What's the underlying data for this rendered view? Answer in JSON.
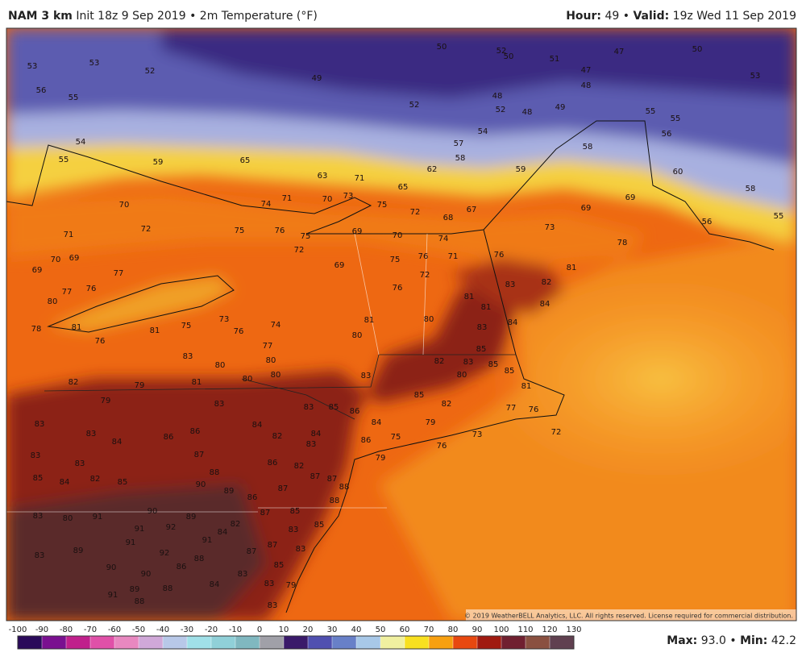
{
  "header": {
    "model": "NAM 3 km",
    "init": "Init 18z 9 Sep 2019",
    "separator": "•",
    "parameter": "2m Temperature (°F)",
    "hour_label": "Hour:",
    "hour": "49",
    "valid_label": "Valid:",
    "valid": "19z Wed 11 Sep 2019"
  },
  "map": {
    "labels": [
      53,
      53,
      52,
      49,
      50,
      52,
      50,
      51,
      47,
      50,
      47,
      48,
      53,
      56,
      55,
      52,
      48,
      52,
      48,
      49,
      55,
      55,
      56,
      54,
      57,
      58,
      54,
      55,
      59,
      65,
      63,
      71,
      65,
      62,
      59,
      58,
      60,
      58,
      69,
      69,
      55,
      56,
      73,
      78,
      70,
      72,
      74,
      71,
      70,
      73,
      75,
      72,
      68,
      67,
      75,
      76,
      75,
      69,
      70,
      74,
      71,
      69,
      70,
      69,
      77,
      72,
      69,
      75,
      76,
      71,
      76,
      81,
      82,
      83,
      84,
      73,
      74,
      76,
      80,
      77,
      76,
      78,
      81,
      76,
      81,
      75,
      77,
      80,
      81,
      76,
      72,
      80,
      81,
      81,
      83,
      84,
      85,
      83,
      80,
      80,
      80,
      83,
      82,
      83,
      80,
      85,
      85,
      81,
      82,
      79,
      81,
      80,
      79,
      83,
      83,
      85,
      86,
      84,
      85,
      82,
      79,
      77,
      76,
      72,
      83,
      83,
      84,
      86,
      86,
      84,
      82,
      84,
      83,
      86,
      75,
      76,
      73,
      83,
      83,
      87,
      86,
      82,
      79,
      85,
      84,
      82,
      85,
      88,
      90,
      89,
      86,
      87,
      87,
      87,
      88,
      88,
      83,
      80,
      91,
      90,
      89,
      85,
      87,
      91,
      92,
      82,
      84,
      85,
      83,
      91,
      83,
      89,
      91,
      92,
      87,
      87,
      83,
      90,
      90,
      86,
      88,
      85,
      83,
      91,
      89,
      88,
      88,
      84,
      83,
      79,
      83
    ],
    "copyright": "© 2019 WeatherBELL Analytics, LLC. All rights reserved. License required for commercial distribution."
  },
  "colorbar": {
    "ticks": [
      -100,
      -90,
      -80,
      -70,
      -60,
      -50,
      -40,
      -30,
      -20,
      -10,
      0,
      10,
      20,
      30,
      40,
      50,
      60,
      70,
      80,
      90,
      100,
      110,
      120,
      130
    ]
  },
  "footer": {
    "max_label": "Max:",
    "max": "93.0",
    "separator": "•",
    "min_label": "Min:",
    "min": "42.2"
  }
}
